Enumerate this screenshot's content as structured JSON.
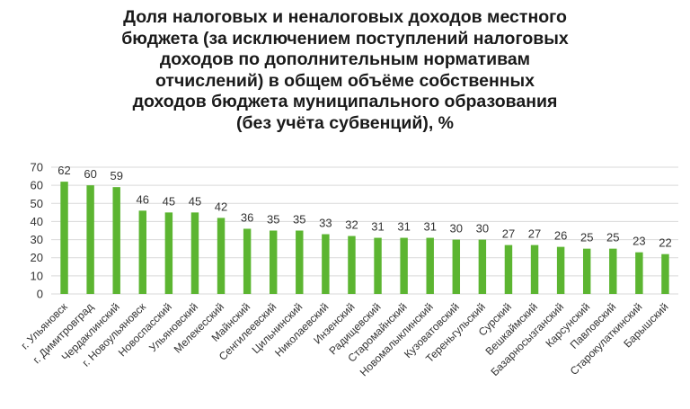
{
  "chart_data": {
    "type": "bar",
    "title": "Доля налоговых и неналоговых доходов местного\nбюджета (за исключением поступлений налоговых\nдоходов по дополнительным нормативам\nотчислений) в общем объёме собственных\nдоходов бюджета муниципального образования\n(без учёта субвенций), %",
    "categories": [
      "г. Ульяновск",
      "г. Димитровград",
      "Чердаклинский",
      "г. Новоульяновск",
      "Новоспасский",
      "Ульяновский",
      "Мелекесский",
      "Майнский",
      "Сенгилеевский",
      "Цильнинский",
      "Николаевский",
      "Инзенский",
      "Радищевский",
      "Старомайнский",
      "Новомалыклинский",
      "Кузоватовский",
      "Тереньгульский",
      "Сурский",
      "Вешкаймский",
      "Базарносызганский",
      "Карсунский",
      "Павловский",
      "Старокулаткинский",
      "Барышский"
    ],
    "values": [
      62,
      60,
      59,
      46,
      45,
      45,
      42,
      36,
      35,
      35,
      33,
      32,
      31,
      31,
      31,
      30,
      30,
      27,
      27,
      26,
      25,
      25,
      23,
      22
    ],
    "ylim": [
      0,
      70
    ],
    "yticks": [
      0,
      10,
      20,
      30,
      40,
      50,
      60,
      70
    ],
    "grid": true,
    "colors": {
      "bar": "#5cb531",
      "grid": "#d9d9d9",
      "text": "#333333"
    }
  }
}
